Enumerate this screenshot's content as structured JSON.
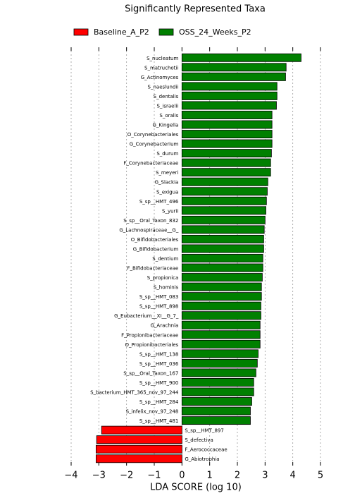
{
  "chart_data": {
    "type": "bar",
    "orientation": "horizontal",
    "title": "Significantly Represented Taxa",
    "xlabel": "LDA SCORE (log 10)",
    "xlim": [
      -4,
      5
    ],
    "xticks": [
      {
        "value": -4,
        "label": "−4"
      },
      {
        "value": -3,
        "label": "−3"
      },
      {
        "value": -2,
        "label": "−2"
      },
      {
        "value": -1,
        "label": "−1"
      },
      0,
      1,
      2,
      3,
      4,
      5
    ],
    "grid": true,
    "series": [
      {
        "name": "OSS_24_Weeks_P2",
        "color": "#008000",
        "categories": [
          "S_nucleatum",
          "S_matruchotii",
          "G_Actinomyces",
          "S_naeslundii",
          "S_dentalis",
          "S_israelii",
          "S_oralis",
          "G_Kingella",
          "O_Corynebacteriales",
          "G_Corynebacterium",
          "S_durum",
          "F_Corynebacteriaceae",
          "S_meyeri",
          "G_Slackia",
          "S_exigua",
          "S_sp__HMT_496",
          "S_yurii",
          "S_sp__Oral_Taxon_832",
          "G_Lachnospiraceae__G_",
          "O_Bifidobacteriales",
          "G_Bifidobacterium",
          "S_dentium",
          "F_Bifidobacteriaceae",
          "S_propionica",
          "S_hominis",
          "S_sp__HMT_083",
          "S_sp__HMT_898",
          "G_Eubacterium__XI__G_7_",
          "G_Arachnia",
          "F_Propionibacteriaceae",
          "O_Propionibacteriales",
          "S_sp__HMT_138",
          "S_sp__HMT_036",
          "S_sp__Oral_Taxon_167",
          "S_sp__HMT_900",
          "S_bacterium_HMT_365_nov_97_244",
          "S_sp__HMT_284",
          "S_infelix_nov_97_248",
          "S_sp__HMT_481"
        ],
        "values": [
          4.3,
          3.76,
          3.74,
          3.43,
          3.43,
          3.41,
          3.25,
          3.25,
          3.25,
          3.25,
          3.23,
          3.2,
          3.2,
          3.1,
          3.08,
          3.05,
          3.03,
          3.0,
          2.97,
          2.95,
          2.95,
          2.92,
          2.92,
          2.9,
          2.87,
          2.87,
          2.85,
          2.85,
          2.82,
          2.82,
          2.82,
          2.75,
          2.72,
          2.67,
          2.59,
          2.59,
          2.52,
          2.47,
          2.47
        ]
      },
      {
        "name": "Baseline_A_P2",
        "color": "#ff0000",
        "categories": [
          "S_sp__HMT_897",
          "S_defectiva",
          "F_Aerococcaceae",
          "G_Abiotrophia"
        ],
        "values": [
          -2.9,
          -3.08,
          -3.1,
          -3.1
        ]
      }
    ],
    "legend_order": [
      1,
      0
    ]
  }
}
